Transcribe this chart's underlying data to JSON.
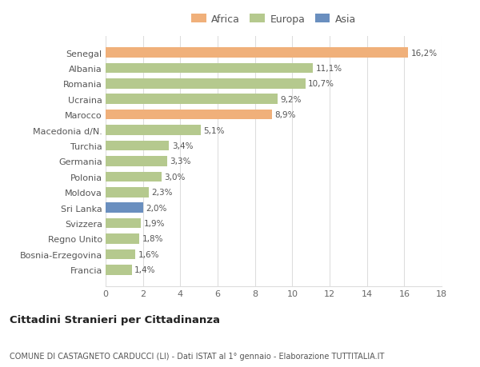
{
  "countries": [
    "Francia",
    "Bosnia-Erzegovina",
    "Regno Unito",
    "Svizzera",
    "Sri Lanka",
    "Moldova",
    "Polonia",
    "Germania",
    "Turchia",
    "Macedonia d/N.",
    "Marocco",
    "Ucraina",
    "Romania",
    "Albania",
    "Senegal"
  ],
  "values": [
    1.4,
    1.6,
    1.8,
    1.9,
    2.0,
    2.3,
    3.0,
    3.3,
    3.4,
    5.1,
    8.9,
    9.2,
    10.7,
    11.1,
    16.2
  ],
  "labels": [
    "1,4%",
    "1,6%",
    "1,8%",
    "1,9%",
    "2,0%",
    "2,3%",
    "3,0%",
    "3,3%",
    "3,4%",
    "5,1%",
    "8,9%",
    "9,2%",
    "10,7%",
    "11,1%",
    "16,2%"
  ],
  "colors": [
    "#b5c98e",
    "#b5c98e",
    "#b5c98e",
    "#b5c98e",
    "#6a8fbf",
    "#b5c98e",
    "#b5c98e",
    "#b5c98e",
    "#b5c98e",
    "#b5c98e",
    "#f0b07a",
    "#b5c98e",
    "#b5c98e",
    "#b5c98e",
    "#f0b07a"
  ],
  "legend_labels": [
    "Africa",
    "Europa",
    "Asia"
  ],
  "legend_colors": [
    "#f0b07a",
    "#b5c98e",
    "#6a8fbf"
  ],
  "xlim": [
    0,
    18
  ],
  "xticks": [
    0,
    2,
    4,
    6,
    8,
    10,
    12,
    14,
    16,
    18
  ],
  "title": "Cittadini Stranieri per Cittadinanza",
  "subtitle": "COMUNE DI CASTAGNETO CARDUCCI (LI) - Dati ISTAT al 1° gennaio - Elaborazione TUTTITALIA.IT",
  "bg_color": "#ffffff",
  "grid_color": "#dddddd"
}
